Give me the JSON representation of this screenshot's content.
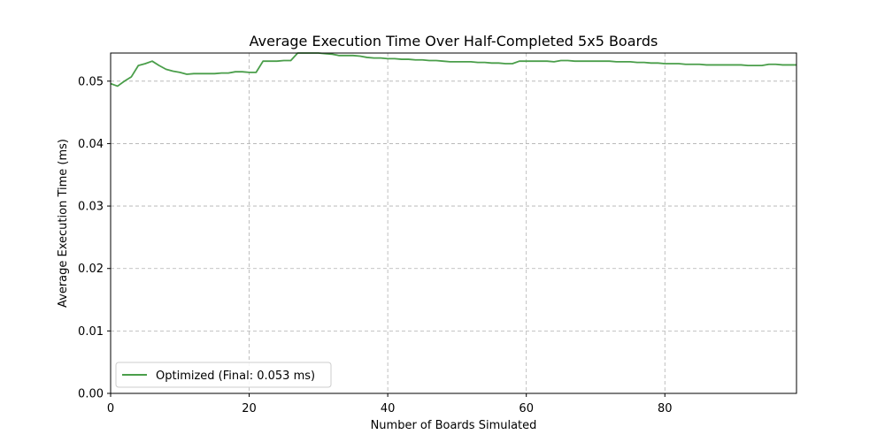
{
  "chart_data": {
    "type": "line",
    "title": "Average Execution Time Over Half-Completed 5x5 Boards",
    "xlabel": "Number of Boards Simulated",
    "ylabel": "Average Execution Time (ms)",
    "xlim": [
      0,
      99
    ],
    "ylim": [
      0.0,
      0.0545
    ],
    "xticks": [
      0,
      20,
      40,
      60,
      80
    ],
    "xtick_labels": [
      "0",
      "20",
      "40",
      "60",
      "80"
    ],
    "yticks": [
      0.0,
      0.01,
      0.02,
      0.03,
      0.04,
      0.05
    ],
    "ytick_labels": [
      "0.00",
      "0.01",
      "0.02",
      "0.03",
      "0.04",
      "0.05"
    ],
    "grid": true,
    "legend_position": "lower-left",
    "series": [
      {
        "name": "Optimized (Final: 0.053 ms)",
        "color": "#4a9e4a",
        "x": [
          0,
          1,
          2,
          3,
          4,
          5,
          6,
          7,
          8,
          9,
          10,
          11,
          12,
          13,
          14,
          15,
          16,
          17,
          18,
          19,
          20,
          21,
          22,
          23,
          24,
          25,
          26,
          27,
          28,
          29,
          30,
          31,
          32,
          33,
          34,
          35,
          36,
          37,
          38,
          39,
          40,
          41,
          42,
          43,
          44,
          45,
          46,
          47,
          48,
          49,
          50,
          51,
          52,
          53,
          54,
          55,
          56,
          57,
          58,
          59,
          60,
          61,
          62,
          63,
          64,
          65,
          66,
          67,
          68,
          69,
          70,
          71,
          72,
          73,
          74,
          75,
          76,
          77,
          78,
          79,
          80,
          81,
          82,
          83,
          84,
          85,
          86,
          87,
          88,
          89,
          90,
          91,
          92,
          93,
          94,
          95,
          96,
          97,
          98,
          99
        ],
        "y": [
          0.0496,
          0.0492,
          0.05,
          0.0507,
          0.0525,
          0.0528,
          0.0532,
          0.0525,
          0.0519,
          0.0516,
          0.0514,
          0.0511,
          0.0512,
          0.0512,
          0.0512,
          0.0512,
          0.0513,
          0.0513,
          0.0515,
          0.0515,
          0.0514,
          0.0514,
          0.0532,
          0.0532,
          0.0532,
          0.0533,
          0.0533,
          0.0545,
          0.0545,
          0.0545,
          0.0545,
          0.0544,
          0.0543,
          0.0541,
          0.0541,
          0.0541,
          0.054,
          0.0538,
          0.0537,
          0.0537,
          0.0536,
          0.0536,
          0.0535,
          0.0535,
          0.0534,
          0.0534,
          0.0533,
          0.0533,
          0.0532,
          0.0531,
          0.0531,
          0.0531,
          0.0531,
          0.053,
          0.053,
          0.0529,
          0.0529,
          0.0528,
          0.0528,
          0.0532,
          0.0532,
          0.0532,
          0.0532,
          0.0532,
          0.0531,
          0.0533,
          0.0533,
          0.0532,
          0.0532,
          0.0532,
          0.0532,
          0.0532,
          0.0532,
          0.0531,
          0.0531,
          0.0531,
          0.053,
          0.053,
          0.0529,
          0.0529,
          0.0528,
          0.0528,
          0.0528,
          0.0527,
          0.0527,
          0.0527,
          0.0526,
          0.0526,
          0.0526,
          0.0526,
          0.0526,
          0.0526,
          0.0525,
          0.0525,
          0.0525,
          0.0527,
          0.0527,
          0.0526,
          0.0526,
          0.0526
        ]
      }
    ]
  }
}
